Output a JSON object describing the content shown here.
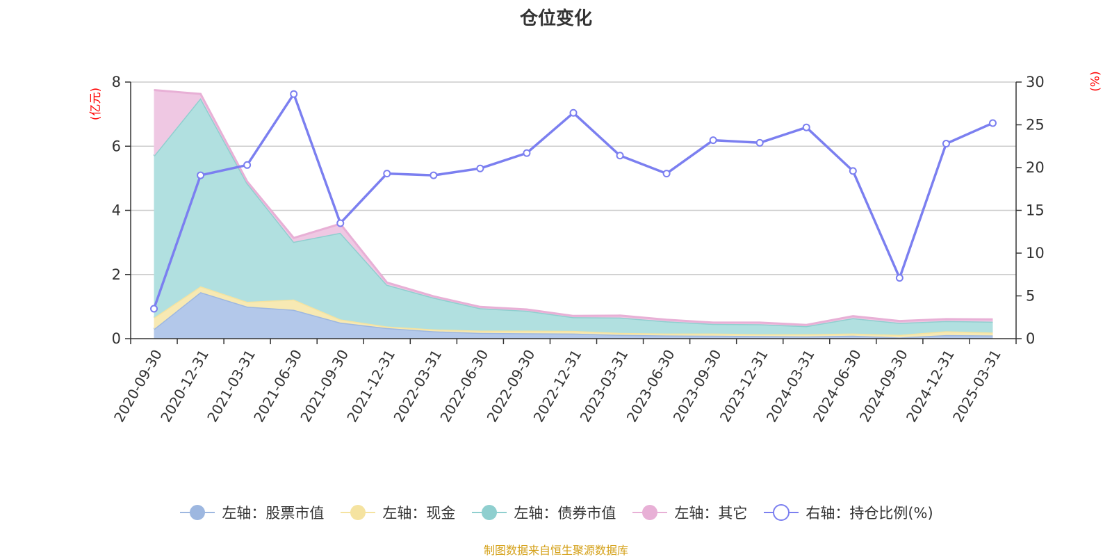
{
  "chart_data": {
    "type": "area",
    "title": "仓位变化",
    "left_axis_unit": "(亿元)",
    "right_axis_unit": "(%)",
    "categories": [
      "2020-09-30",
      "2020-12-31",
      "2021-03-31",
      "2021-06-30",
      "2021-09-30",
      "2021-12-31",
      "2022-03-31",
      "2022-06-30",
      "2022-09-30",
      "2022-12-31",
      "2023-03-31",
      "2023-06-30",
      "2023-09-30",
      "2023-12-31",
      "2024-03-31",
      "2024-06-30",
      "2024-09-30",
      "2024-12-31",
      "2025-03-31"
    ],
    "left_axis": {
      "min": 0,
      "max": 8,
      "ticks": [
        0,
        2,
        4,
        6,
        8
      ]
    },
    "right_axis": {
      "min": 0,
      "max": 30,
      "ticks": [
        0,
        5,
        10,
        15,
        20,
        25,
        30
      ]
    },
    "stacked": true,
    "series": [
      {
        "name": "左轴：股票市值",
        "axis": "left",
        "color": "#9db7e0",
        "fill": "#b3c8ea",
        "values": [
          0.3,
          1.45,
          1.0,
          0.9,
          0.5,
          0.33,
          0.23,
          0.18,
          0.17,
          0.16,
          0.12,
          0.1,
          0.09,
          0.08,
          0.07,
          0.09,
          0.04,
          0.11,
          0.1
        ]
      },
      {
        "name": "左轴：现金",
        "axis": "left",
        "color": "#f5e3a0",
        "fill": "#f7e9b3",
        "values": [
          0.35,
          0.18,
          0.15,
          0.32,
          0.1,
          0.05,
          0.06,
          0.07,
          0.08,
          0.08,
          0.06,
          0.06,
          0.07,
          0.06,
          0.07,
          0.07,
          0.08,
          0.12,
          0.09
        ]
      },
      {
        "name": "左轴：债券市值",
        "axis": "left",
        "color": "#8fcfcf",
        "fill": "#b1e0e0",
        "values": [
          5.05,
          5.87,
          3.7,
          1.8,
          2.7,
          1.3,
          0.99,
          0.7,
          0.62,
          0.43,
          0.48,
          0.38,
          0.3,
          0.31,
          0.25,
          0.48,
          0.37,
          0.32,
          0.34
        ]
      },
      {
        "name": "左轴：其它",
        "axis": "left",
        "color": "#e8b0d6",
        "fill": "#efc8e3",
        "values": [
          2.05,
          0.13,
          0.05,
          0.12,
          0.28,
          0.07,
          0.04,
          0.04,
          0.04,
          0.04,
          0.06,
          0.05,
          0.04,
          0.05,
          0.04,
          0.06,
          0.06,
          0.06,
          0.07
        ]
      },
      {
        "name": "右轴：持仓比例(%)",
        "axis": "right",
        "type": "line",
        "color": "#7b7ff0",
        "values": [
          3.5,
          19.1,
          20.3,
          28.6,
          13.5,
          19.3,
          19.1,
          19.9,
          21.7,
          26.4,
          21.4,
          19.3,
          23.2,
          22.9,
          24.7,
          19.6,
          7.1,
          22.8,
          25.2
        ]
      }
    ],
    "grid": true,
    "legend_position": "bottom-center"
  },
  "source": "制图数据来自恒生聚源数据库"
}
